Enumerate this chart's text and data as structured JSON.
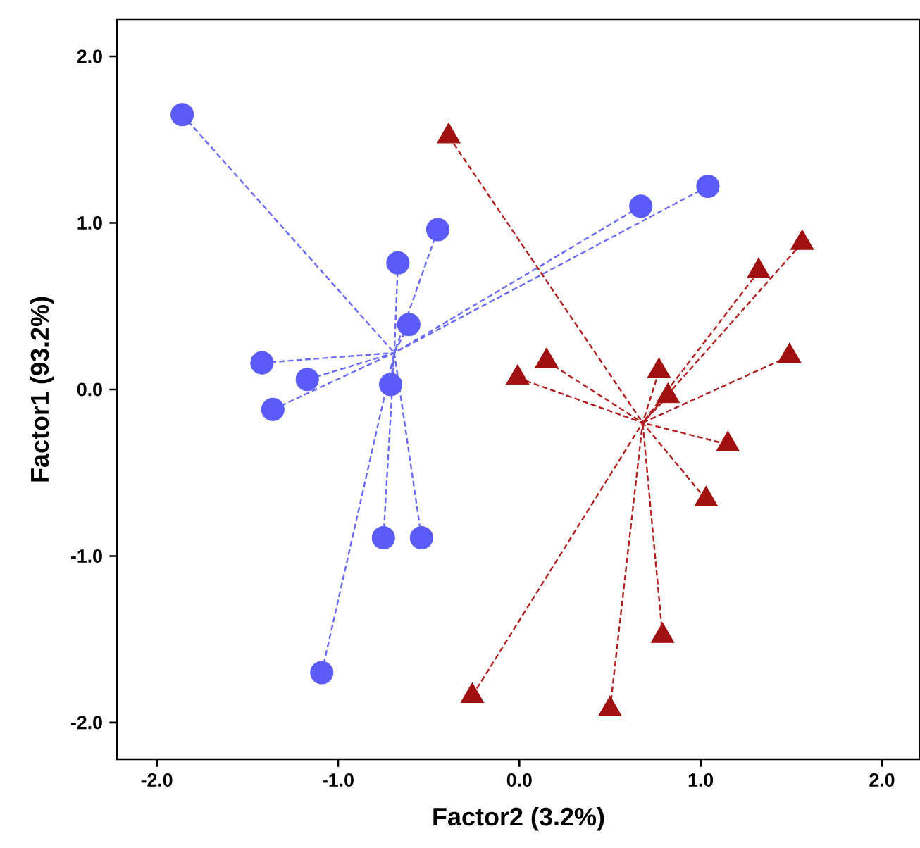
{
  "chart_data": {
    "type": "scatter",
    "xlabel": "Factor2 (3.2%)",
    "ylabel": "Factor1 (93.2%)",
    "xlim": [
      -2.22,
      2.21
    ],
    "ylim": [
      -2.22,
      2.22
    ],
    "xticks": [
      {
        "value": -2,
        "label": "-2.0"
      },
      {
        "value": -1,
        "label": "-1.0"
      },
      {
        "value": 0,
        "label": "0.0"
      },
      {
        "value": 1,
        "label": "1.0"
      },
      {
        "value": 2,
        "label": "2.0"
      }
    ],
    "yticks": [
      {
        "value": -2,
        "label": "-2.0"
      },
      {
        "value": -1,
        "label": "-1.0"
      },
      {
        "value": 0,
        "label": "0.0"
      },
      {
        "value": 1,
        "label": "1.0"
      },
      {
        "value": 2,
        "label": "2.0"
      }
    ],
    "grid": false,
    "series": [
      {
        "type": "line",
        "line_style": "dashed",
        "marker": "none",
        "color": "#6a6af5",
        "x": [
          -1.86,
          -0.69,
          null,
          0.67,
          -0.69,
          null,
          1.04,
          -0.69,
          null,
          -0.45,
          -0.69,
          null,
          -0.67,
          -0.69,
          null,
          -0.61,
          -0.69,
          null,
          -1.42,
          -0.69,
          null,
          -1.17,
          -0.69,
          null,
          -0.71,
          -0.69,
          null,
          -1.36,
          -0.69,
          null,
          -0.75,
          -0.69,
          null,
          -0.54,
          -0.69,
          null,
          -1.09,
          -0.69
        ],
        "values": [
          1.65,
          0.22,
          null,
          1.1,
          0.22,
          null,
          1.22,
          0.22,
          null,
          0.96,
          0.22,
          null,
          0.76,
          0.22,
          null,
          0.39,
          0.22,
          null,
          0.16,
          0.22,
          null,
          0.06,
          0.22,
          null,
          0.03,
          0.22,
          null,
          -0.12,
          0.22,
          null,
          -0.89,
          0.22,
          null,
          -0.89,
          0.22,
          null,
          -1.7,
          0.22
        ]
      },
      {
        "type": "line",
        "line_style": "dashed",
        "marker": "none",
        "color": "#b02020",
        "x": [
          -0.39,
          0.68,
          null,
          -0.01,
          0.68,
          null,
          0.15,
          0.68,
          null,
          0.77,
          0.68,
          null,
          0.82,
          0.68,
          null,
          1.32,
          0.68,
          null,
          1.56,
          0.68,
          null,
          1.49,
          0.68,
          null,
          1.15,
          0.68,
          null,
          1.03,
          0.68,
          null,
          0.79,
          0.68,
          null,
          0.5,
          0.68,
          null,
          -0.26,
          0.68
        ],
        "values": [
          1.52,
          -0.2,
          null,
          0.07,
          -0.2,
          null,
          0.17,
          -0.2,
          null,
          0.11,
          -0.2,
          null,
          -0.04,
          -0.2,
          null,
          0.71,
          -0.2,
          null,
          0.88,
          -0.2,
          null,
          0.2,
          -0.2,
          null,
          -0.33,
          -0.2,
          null,
          -0.66,
          -0.2,
          null,
          -1.48,
          -0.2,
          null,
          -1.92,
          -0.2,
          null,
          -1.84,
          -0.2
        ]
      },
      {
        "marker": "circle",
        "color": "#5b5bf7",
        "x": [
          -1.86,
          0.67,
          1.04,
          -0.45,
          -0.67,
          -0.61,
          -1.42,
          -1.17,
          -0.71,
          -1.36,
          -0.75,
          -0.54,
          -1.09
        ],
        "values": [
          1.65,
          1.1,
          1.22,
          0.96,
          0.76,
          0.39,
          0.16,
          0.06,
          0.03,
          -0.12,
          -0.89,
          -0.89,
          -1.7
        ]
      },
      {
        "marker": "triangle",
        "color": "#a01010",
        "x": [
          -0.39,
          -0.01,
          0.15,
          0.77,
          0.82,
          1.32,
          1.56,
          1.49,
          1.15,
          1.03,
          0.79,
          0.5,
          -0.26
        ],
        "values": [
          1.52,
          0.07,
          0.17,
          0.11,
          -0.04,
          0.71,
          0.88,
          0.2,
          -0.33,
          -0.66,
          -1.48,
          -1.92,
          -1.84
        ]
      }
    ]
  }
}
